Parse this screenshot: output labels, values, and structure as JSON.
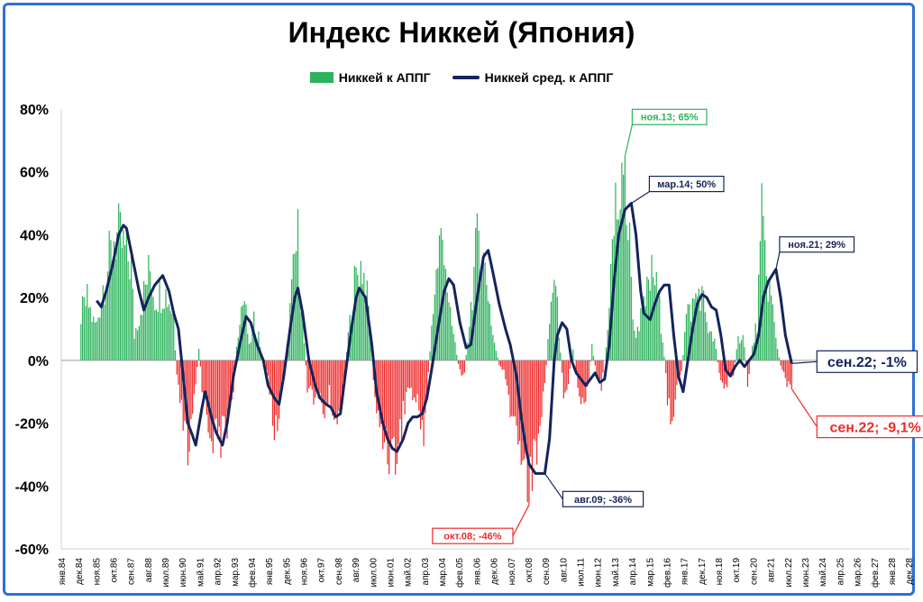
{
  "chart_data": {
    "type": "bar+line",
    "title": "Индекс Никкей (Япония)",
    "legend": {
      "position": "top-center",
      "bar_series": "Никкей к АППГ",
      "line_series": "Никкей сред. к АППГ"
    },
    "colors": {
      "positive": "#2db35d",
      "negative": "#ee2b2b",
      "line": "#14245c",
      "frame": "#2f6fd6",
      "ann_green": "#2db35d",
      "ann_navy": "#14245c",
      "ann_red": "#ee2b2b"
    },
    "ylim": [
      -60,
      80
    ],
    "y_ticks": [
      "80%",
      "60%",
      "40%",
      "20%",
      "0%",
      "-20%",
      "-40%",
      "-60%"
    ],
    "x_ticks": [
      "янв.84",
      "дек.84",
      "ноя.85",
      "окт.86",
      "сен.87",
      "авг.88",
      "июл.89",
      "июн.90",
      "май.91",
      "апр.92",
      "мар.93",
      "фев.94",
      "янв.95",
      "дек.95",
      "ноя.96",
      "окт.97",
      "сен.98",
      "авг.99",
      "июл.00",
      "июн.01",
      "май.02",
      "апр.03",
      "мар.04",
      "фев.05",
      "янв.06",
      "дек.06",
      "ноя.07",
      "окт.08",
      "сен.09",
      "авг.10",
      "июл.11",
      "июн.12",
      "май.13",
      "апр.14",
      "мар.15",
      "фев.16",
      "янв.17",
      "дек.17",
      "ноя.18",
      "окт.19",
      "сен.20",
      "авг.21",
      "июл.22",
      "июн.23",
      "май.24",
      "апр.25",
      "мар.26",
      "фев.27",
      "янв.28",
      "дек.28"
    ],
    "bar_series_yoy_pct": {
      "name": "Никкей к АППГ",
      "x_start": "янв.84",
      "step": "month",
      "anchors": [
        [
          "янв.84",
          null
        ],
        [
          "дек.84",
          null
        ],
        [
          "янв.85",
          18
        ],
        [
          "май.85",
          24
        ],
        [
          "сен.85",
          15
        ],
        [
          "ноя.85",
          14
        ],
        [
          "мар.86",
          30
        ],
        [
          "авг.86",
          42
        ],
        [
          "окт.86",
          50
        ],
        [
          "янв.87",
          48
        ],
        [
          "июн.87",
          42
        ],
        [
          "сен.87",
          38
        ],
        [
          "ноя.87",
          10
        ],
        [
          "фев.88",
          18
        ],
        [
          "июл.88",
          32
        ],
        [
          "сен.88",
          36
        ],
        [
          "дек.88",
          25
        ],
        [
          "июн.89",
          28
        ],
        [
          "сен.89",
          24
        ],
        [
          "дек.89",
          18
        ],
        [
          "фев.90",
          -8
        ],
        [
          "май.90",
          -20
        ],
        [
          "авг.90",
          -35
        ],
        [
          "окт.90",
          -38
        ],
        [
          "янв.91",
          -18
        ],
        [
          "апр.91",
          5
        ],
        [
          "июн.91",
          -10
        ],
        [
          "окт.91",
          -25
        ],
        [
          "мар.92",
          -32
        ],
        [
          "июл.92",
          -30
        ],
        [
          "окт.92",
          -25
        ],
        [
          "фев.93",
          -10
        ],
        [
          "июн.93",
          20
        ],
        [
          "сен.93",
          24
        ],
        [
          "дек.93",
          5
        ],
        [
          "мар.94",
          15
        ],
        [
          "июн.94",
          10
        ],
        [
          "сен.94",
          -2
        ],
        [
          "дек.94",
          -5
        ],
        [
          "мар.95",
          -25
        ],
        [
          "май.95",
          -28
        ],
        [
          "авг.95",
          -15
        ],
        [
          "ноя.95",
          -2
        ],
        [
          "фев.96",
          20
        ],
        [
          "май.96",
          40
        ],
        [
          "июл.96",
          48
        ],
        [
          "окт.96",
          15
        ],
        [
          "янв.97",
          -10
        ],
        [
          "май.97",
          -14
        ],
        [
          "авг.97",
          -15
        ],
        [
          "дек.97",
          -20
        ],
        [
          "мар.98",
          -14
        ],
        [
          "июл.98",
          -22
        ],
        [
          "сен.98",
          -25
        ],
        [
          "дек.98",
          -10
        ],
        [
          "мар.99",
          10
        ],
        [
          "июл.99",
          30
        ],
        [
          "сен.99",
          35
        ],
        [
          "дек.99",
          38
        ],
        [
          "апр.00",
          20
        ],
        [
          "июл.00",
          -10
        ],
        [
          "окт.00",
          -25
        ],
        [
          "фев.01",
          -30
        ],
        [
          "май.01",
          -35
        ],
        [
          "сен.01",
          -38
        ],
        [
          "янв.02",
          -25
        ],
        [
          "май.02",
          -10
        ],
        [
          "сен.02",
          -15
        ],
        [
          "дек.02",
          -20
        ],
        [
          "мар.03",
          -28
        ],
        [
          "июн.03",
          -5
        ],
        [
          "сен.03",
          22
        ],
        [
          "янв.04",
          45
        ],
        [
          "апр.04",
          50
        ],
        [
          "июл.04",
          20
        ],
        [
          "окт.04",
          10
        ],
        [
          "фев.05",
          -5
        ],
        [
          "май.05",
          -4
        ],
        [
          "авг.05",
          15
        ],
        [
          "ноя.05",
          35
        ],
        [
          "фев.06",
          52
        ],
        [
          "май.06",
          40
        ],
        [
          "авг.06",
          28
        ],
        [
          "ноя.06",
          10
        ],
        [
          "мар.07",
          -2
        ],
        [
          "июн.07",
          -5
        ],
        [
          "сен.07",
          -15
        ],
        [
          "дек.07",
          -25
        ],
        [
          "мар.08",
          -30
        ],
        [
          "июн.08",
          -35
        ],
        [
          "окт.08",
          -46
        ],
        [
          "янв.09",
          -40
        ],
        [
          "апр.09",
          -30
        ],
        [
          "авг.09",
          -10
        ],
        [
          "ноя.09",
          15
        ],
        [
          "фев.10",
          35
        ],
        [
          "май.10",
          12
        ],
        [
          "авг.10",
          -12
        ],
        [
          "ноя.10",
          -8
        ],
        [
          "фев.11",
          5
        ],
        [
          "май.11",
          -10
        ],
        [
          "авг.11",
          -16
        ],
        [
          "ноя.11",
          -12
        ],
        [
          "фев.12",
          5
        ],
        [
          "май.12",
          -5
        ],
        [
          "авг.12",
          -10
        ],
        [
          "ноя.12",
          5
        ],
        [
          "фев.13",
          35
        ],
        [
          "май.13",
          60
        ],
        [
          "ноя.13",
          65
        ],
        [
          "фев.14",
          45
        ],
        [
          "май.14",
          10
        ],
        [
          "авг.14",
          15
        ],
        [
          "ноя.14",
          20
        ],
        [
          "фев.15",
          30
        ],
        [
          "май.15",
          35
        ],
        [
          "авг.15",
          25
        ],
        [
          "ноя.15",
          10
        ],
        [
          "фев.16",
          -15
        ],
        [
          "май.16",
          -22
        ],
        [
          "авг.16",
          -12
        ],
        [
          "ноя.16",
          -5
        ],
        [
          "фев.17",
          18
        ],
        [
          "май.17",
          20
        ],
        [
          "авг.17",
          25
        ],
        [
          "ноя.17",
          28
        ],
        [
          "фев.18",
          20
        ],
        [
          "май.18",
          10
        ],
        [
          "авг.18",
          8
        ],
        [
          "ноя.18",
          -5
        ],
        [
          "фев.19",
          -12
        ],
        [
          "май.19",
          -8
        ],
        [
          "авг.19",
          -5
        ],
        [
          "ноя.19",
          8
        ],
        [
          "фев.20",
          12
        ],
        [
          "май.20",
          -10
        ],
        [
          "авг.20",
          5
        ],
        [
          "ноя.20",
          15
        ],
        [
          "фев.21",
          54
        ],
        [
          "май.21",
          35
        ],
        [
          "авг.21",
          25
        ],
        [
          "ноя.21",
          8
        ],
        [
          "фев.22",
          -2
        ],
        [
          "май.22",
          -8
        ],
        [
          "сен.22",
          -9.1
        ]
      ]
    },
    "line_series_avg_yoy_pct": {
      "name": "Никкей сред. к АППГ",
      "anchors": [
        [
          "ноя.85",
          19
        ],
        [
          "фев.86",
          17
        ],
        [
          "май.86",
          22
        ],
        [
          "сен.86",
          30
        ],
        [
          "янв.87",
          40
        ],
        [
          "апр.87",
          43
        ],
        [
          "июн.87",
          42
        ],
        [
          "окт.87",
          32
        ],
        [
          "фев.88",
          22
        ],
        [
          "май.88",
          16
        ],
        [
          "авг.88",
          20
        ],
        [
          "дек.88",
          24
        ],
        [
          "май.89",
          27
        ],
        [
          "сен.89",
          22
        ],
        [
          "дек.89",
          15
        ],
        [
          "мар.90",
          10
        ],
        [
          "июн.90",
          -5
        ],
        [
          "сен.90",
          -20
        ],
        [
          "дек.90",
          -24
        ],
        [
          "фев.91",
          -27
        ],
        [
          "июн.91",
          -15
        ],
        [
          "авг.91",
          -10
        ],
        [
          "дек.91",
          -18
        ],
        [
          "мар.92",
          -23
        ],
        [
          "июл.92",
          -27
        ],
        [
          "окт.92",
          -20
        ],
        [
          "фев.93",
          -5
        ],
        [
          "июн.93",
          5
        ],
        [
          "окт.93",
          14
        ],
        [
          "янв.94",
          12
        ],
        [
          "май.94",
          5
        ],
        [
          "сен.94",
          0
        ],
        [
          "дек.94",
          -8
        ],
        [
          "апр.95",
          -12
        ],
        [
          "июл.95",
          -14
        ],
        [
          "окт.95",
          -5
        ],
        [
          "фев.96",
          10
        ],
        [
          "май.96",
          20
        ],
        [
          "июл.96",
          23
        ],
        [
          "окт.96",
          15
        ],
        [
          "фев.97",
          0
        ],
        [
          "июн.97",
          -8
        ],
        [
          "сен.97",
          -12
        ],
        [
          "янв.98",
          -14
        ],
        [
          "апр.98",
          -15
        ],
        [
          "июл.98",
          -18
        ],
        [
          "окт.98",
          -17
        ],
        [
          "янв.99",
          -5
        ],
        [
          "май.99",
          10
        ],
        [
          "авг.99",
          20
        ],
        [
          "окт.99",
          23
        ],
        [
          "фев.00",
          20
        ],
        [
          "июн.00",
          5
        ],
        [
          "сен.00",
          -10
        ],
        [
          "янв.01",
          -20
        ],
        [
          "апр.01",
          -25
        ],
        [
          "июл.01",
          -28
        ],
        [
          "окт.01",
          -29
        ],
        [
          "фев.02",
          -25
        ],
        [
          "май.02",
          -20
        ],
        [
          "авг.02",
          -18
        ],
        [
          "ноя.02",
          -18
        ],
        [
          "фев.03",
          -17
        ],
        [
          "май.03",
          -12
        ],
        [
          "авг.03",
          -3
        ],
        [
          "дек.03",
          10
        ],
        [
          "апр.04",
          22
        ],
        [
          "июл.04",
          26
        ],
        [
          "окт.04",
          24
        ],
        [
          "фев.05",
          12
        ],
        [
          "июн.05",
          4
        ],
        [
          "сен.05",
          5
        ],
        [
          "янв.06",
          20
        ],
        [
          "май.06",
          33
        ],
        [
          "авг.06",
          35
        ],
        [
          "ноя.06",
          28
        ],
        [
          "мар.07",
          18
        ],
        [
          "июл.07",
          10
        ],
        [
          "окт.07",
          5
        ],
        [
          "фев.08",
          -5
        ],
        [
          "май.08",
          -18
        ],
        [
          "авг.08",
          -28
        ],
        [
          "окт.08",
          -33
        ],
        [
          "фев.09",
          -36
        ],
        [
          "авг.09",
          -36
        ],
        [
          "ноя.09",
          -25
        ],
        [
          "фев.10",
          0
        ],
        [
          "апр.10",
          8
        ],
        [
          "июл.10",
          12
        ],
        [
          "окт.10",
          10
        ],
        [
          "янв.11",
          0
        ],
        [
          "апр.11",
          -4
        ],
        [
          "июл.11",
          -6
        ],
        [
          "окт.11",
          -8
        ],
        [
          "янв.12",
          -6
        ],
        [
          "апр.12",
          -4
        ],
        [
          "июл.12",
          -7
        ],
        [
          "окт.12",
          -6
        ],
        [
          "янв.13",
          5
        ],
        [
          "апр.13",
          25
        ],
        [
          "июл.13",
          40
        ],
        [
          "ноя.13",
          48
        ],
        [
          "мар.14",
          50
        ],
        [
          "июн.14",
          40
        ],
        [
          "сен.14",
          22
        ],
        [
          "ноя.14",
          15
        ],
        [
          "мар.15",
          13
        ],
        [
          "июн.15",
          18
        ],
        [
          "сен.15",
          22
        ],
        [
          "дек.15",
          24
        ],
        [
          "мар.16",
          24
        ],
        [
          "июн.16",
          8
        ],
        [
          "сен.16",
          -5
        ],
        [
          "дек.16",
          -10
        ],
        [
          "мар.17",
          0
        ],
        [
          "июн.17",
          10
        ],
        [
          "сен.17",
          18
        ],
        [
          "дек.17",
          21
        ],
        [
          "мар.18",
          20
        ],
        [
          "июн.18",
          17
        ],
        [
          "сен.18",
          16
        ],
        [
          "дек.18",
          8
        ],
        [
          "мар.19",
          -3
        ],
        [
          "июн.19",
          -5
        ],
        [
          "сен.19",
          -2
        ],
        [
          "дек.19",
          0
        ],
        [
          "мар.20",
          -2
        ],
        [
          "июн.20",
          0
        ],
        [
          "сен.20",
          2
        ],
        [
          "дек.20",
          8
        ],
        [
          "мар.21",
          20
        ],
        [
          "июн.21",
          25
        ],
        [
          "ноя.21",
          29
        ],
        [
          "фев.22",
          20
        ],
        [
          "май.22",
          8
        ],
        [
          "сен.22",
          -1
        ]
      ]
    },
    "annotations": [
      {
        "text": "ноя.13; 65%",
        "x": "ноя.13",
        "y": 65,
        "color": "green",
        "anchor_label_pos": "above"
      },
      {
        "text": "мар.14; 50%",
        "x": "мар.14",
        "y": 50,
        "color": "navy",
        "anchor_label_pos": "above"
      },
      {
        "text": "ноя.21; 29%",
        "x": "ноя.21",
        "y": 29,
        "color": "navy",
        "anchor_label_pos": "above"
      },
      {
        "text": "авг.09; -36%",
        "x": "авг.09",
        "y": -36,
        "color": "navy",
        "anchor_label_pos": "below-right"
      },
      {
        "text": "окт.08; -46%",
        "x": "окт.08",
        "y": -46,
        "color": "red",
        "anchor_label_pos": "below-left"
      },
      {
        "text": "сен.22; -1%",
        "x": "сен.22",
        "y": -1,
        "color": "navy",
        "anchor_label_pos": "right",
        "large": true
      },
      {
        "text": "сен.22; -9,1%",
        "x": "сен.22",
        "y": -9.1,
        "color": "red",
        "anchor_label_pos": "right",
        "large": true
      }
    ]
  }
}
